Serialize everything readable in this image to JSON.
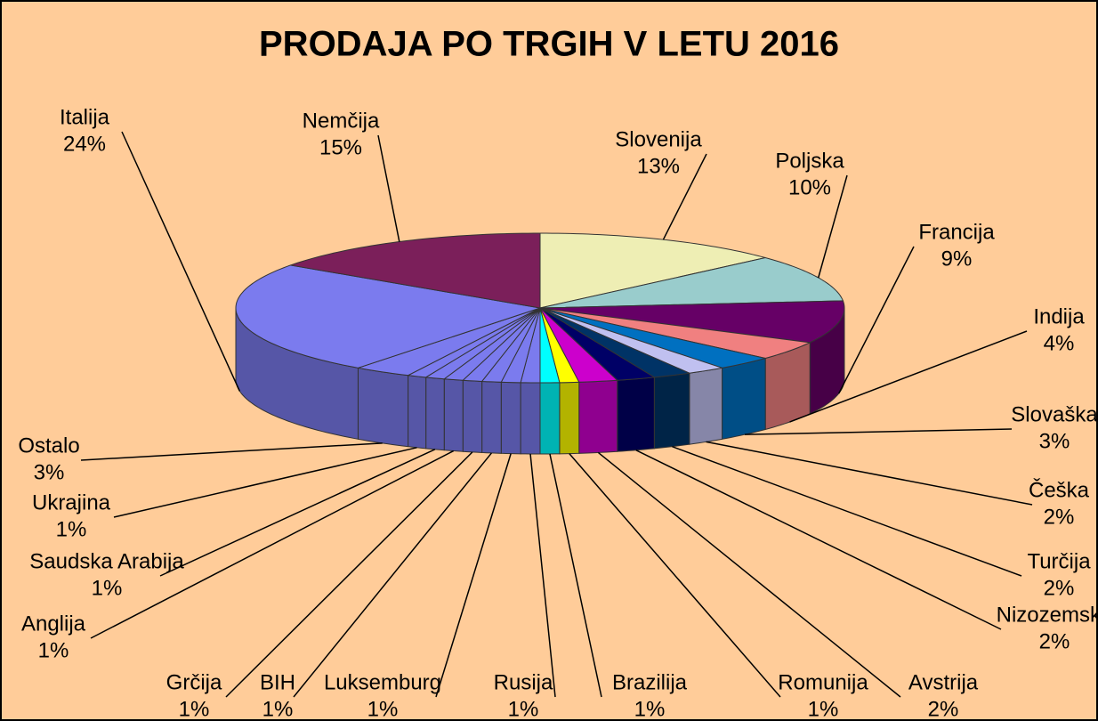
{
  "chart_data": {
    "type": "pie3d",
    "title": "PRODAJA PO TRGIH V LETU 2016",
    "categories": [
      "Slovenija",
      "Poljska",
      "Francija",
      "Indija",
      "Slovaška",
      "Češka",
      "Turčija",
      "Nizozemska",
      "Avstrija",
      "Romunija",
      "Brazilija",
      "Rusija",
      "Luksemburg",
      "BIH",
      "Grčija",
      "Anglija",
      "Saudska Arabija",
      "Ukrajina",
      "Ostalo",
      "Italija",
      "Nemčija"
    ],
    "values": [
      13,
      10,
      9,
      4,
      3,
      2,
      2,
      2,
      2,
      1,
      1,
      1,
      1,
      1,
      1,
      1,
      1,
      1,
      3,
      24,
      15
    ],
    "value_labels": [
      "13%",
      "10%",
      "9%",
      "4%",
      "3%",
      "2%",
      "2%",
      "2%",
      "2%",
      "1%",
      "1%",
      "1%",
      "1%",
      "1%",
      "1%",
      "1%",
      "1%",
      "1%",
      "3%",
      "24%",
      "15%"
    ],
    "colors": [
      "#EEEEB4",
      "#99CCCC",
      "#660066",
      "#F08080",
      "#0070C0",
      "#C0C0F0",
      "#003366",
      "#000066",
      "#CC00CC",
      "#FFFF00",
      "#00FFFF",
      "#7B7BEE",
      "#7B7BEE",
      "#7B7BEE",
      "#7B7BEE",
      "#7B7BEE",
      "#7B7BEE",
      "#7B7BEE",
      "#7B7BEE",
      "#7B7BEE",
      "#7B1F5A"
    ]
  }
}
